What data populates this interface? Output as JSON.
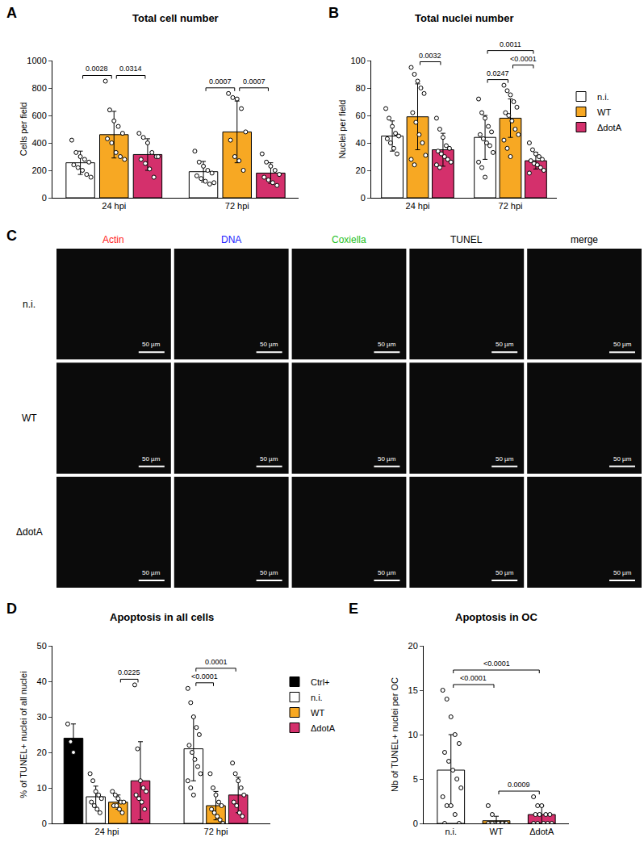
{
  "chart_data": [
    {
      "panel": "A",
      "type": "bar",
      "title": "Total cell number",
      "y_label": "Cells per field",
      "categories": [
        "24 hpi",
        "72 hpi"
      ],
      "series": [
        {
          "name": "n.i.",
          "color": "#ffffff",
          "values": [
            255,
            190
          ],
          "sd": [
            85,
            75
          ],
          "points": [
            [
              420,
              330,
              300,
              280,
              260,
              240,
              220,
              200,
              170,
              150
            ],
            [
              340,
              260,
              230,
              200,
              180,
              160,
              140,
              120,
              100,
              110
            ]
          ]
        },
        {
          "name": "WT",
          "color": "#f7a823",
          "values": [
            460,
            480
          ],
          "sd": [
            170,
            225
          ],
          "points": [
            [
              850,
              640,
              560,
              520,
              470,
              430,
              400,
              330,
              300,
              280
            ],
            [
              760,
              730,
              720,
              650,
              480,
              420,
              300,
              270,
              200
            ]
          ]
        },
        {
          "name": "ΔdotA",
          "color": "#d4306c",
          "values": [
            315,
            180
          ],
          "sd": [
            115,
            75
          ],
          "points": [
            [
              470,
              440,
              400,
              330,
              300,
              280,
              250,
              210,
              150,
              300
            ],
            [
              320,
              260,
              230,
              200,
              170,
              150,
              130,
              110,
              90
            ]
          ]
        }
      ],
      "ylim": [
        0,
        1000
      ],
      "yticks": [
        0,
        200,
        400,
        600,
        800,
        1000
      ],
      "comparisons": [
        {
          "category": "24 hpi",
          "a": "n.i.",
          "b": "WT",
          "p": "0.0028"
        },
        {
          "category": "24 hpi",
          "a": "WT",
          "b": "ΔdotA",
          "p": "0.0314"
        },
        {
          "category": "72 hpi",
          "a": "n.i.",
          "b": "WT",
          "p": "0.0007"
        },
        {
          "category": "72 hpi",
          "a": "WT",
          "b": "ΔdotA",
          "p": "0.0007"
        }
      ]
    },
    {
      "panel": "B",
      "type": "bar",
      "title": "Total nuclei number",
      "y_label": "Nuclei per field",
      "categories": [
        "24 hpi",
        "72 hpi"
      ],
      "series": [
        {
          "name": "n.i.",
          "color": "#ffffff",
          "values": [
            45,
            44
          ],
          "sd": [
            11,
            16
          ],
          "points": [
            [
              65,
              58,
              52,
              47,
              45,
              43,
              40,
              36,
              32
            ],
            [
              72,
              62,
              58,
              52,
              48,
              46,
              43,
              40,
              38,
              33,
              26,
              22,
              15
            ]
          ]
        },
        {
          "name": "WT",
          "color": "#f7a823",
          "values": [
            59,
            58
          ],
          "sd": [
            24,
            14
          ],
          "points": [
            [
              95,
              90,
              85,
              80,
              76,
              62,
              55,
              46,
              40,
              31,
              28,
              24
            ],
            [
              82,
              78,
              75,
              70,
              66,
              62,
              60,
              56,
              50,
              46,
              42,
              36,
              30
            ]
          ]
        },
        {
          "name": "ΔdotA",
          "color": "#d4306c",
          "values": [
            35,
            27
          ],
          "sd": [
            12,
            6
          ],
          "points": [
            [
              58,
              50,
              44,
              38,
              36,
              34,
              32,
              30,
              28,
              26,
              24,
              22
            ],
            [
              40,
              35,
              32,
              30,
              28,
              27,
              25,
              24,
              22,
              20,
              18
            ]
          ]
        }
      ],
      "ylim": [
        0,
        100
      ],
      "yticks": [
        0,
        20,
        40,
        60,
        80,
        100
      ],
      "legend": "right",
      "comparisons": [
        {
          "category": "24 hpi",
          "a": "WT",
          "b": "ΔdotA",
          "p": "0.0032"
        },
        {
          "category": "72 hpi",
          "a": "n.i.",
          "b": "ΔdotA",
          "p": "0.0011"
        },
        {
          "category": "72 hpi",
          "a": "n.i.",
          "b": "WT",
          "p": "0.0247"
        },
        {
          "category": "72 hpi",
          "a": "WT",
          "b": "ΔdotA",
          "p": "<0.0001"
        }
      ]
    },
    {
      "panel": "D",
      "type": "bar",
      "title": "Apoptosis in all cells",
      "y_label": "% of TUNEL+ nuclei of all nuclei",
      "categories": [
        "24 hpi",
        "72 hpi"
      ],
      "series": [
        {
          "name": "Ctrl+",
          "color": "#000000",
          "values": [
            24,
            null
          ],
          "sd": [
            4,
            null
          ],
          "points": [
            [
              28,
              23,
              20
            ],
            []
          ]
        },
        {
          "name": "n.i.",
          "color": "#ffffff",
          "values": [
            7.5,
            21
          ],
          "sd": [
            3,
            9
          ],
          "points": [
            [
              14,
              12,
              9,
              8,
              7,
              6,
              5,
              4,
              3
            ],
            [
              38,
              34,
              30,
              27,
              25,
              22,
              20,
              18,
              16,
              14,
              12,
              10,
              8
            ]
          ]
        },
        {
          "name": "WT",
          "color": "#f7a823",
          "values": [
            6,
            5
          ],
          "sd": [
            2,
            4
          ],
          "points": [
            [
              9,
              8,
              7,
              6,
              6,
              5,
              5,
              4,
              3
            ],
            [
              14,
              10,
              8,
              6,
              5,
              4,
              3,
              2,
              1,
              0
            ]
          ]
        },
        {
          "name": "ΔdotA",
          "color": "#d4306c",
          "values": [
            12,
            8
          ],
          "sd": [
            11,
            5
          ],
          "points": [
            [
              39,
              21,
              12,
              10,
              9,
              8,
              7,
              6,
              4
            ],
            [
              17,
              14,
              12,
              10,
              8,
              6,
              5,
              3,
              2
            ]
          ]
        }
      ],
      "ylim": [
        0,
        50
      ],
      "yticks": [
        0,
        10,
        20,
        30,
        40,
        50
      ],
      "legend": "right",
      "comparisons": [
        {
          "category": "24 hpi",
          "a": "WT",
          "b": "ΔdotA",
          "p": "0.0225"
        },
        {
          "category": "72 hpi",
          "a": "n.i.",
          "b": "ΔdotA",
          "p": "0.0001"
        },
        {
          "category": "72 hpi",
          "a": "n.i.",
          "b": "WT",
          "p": "<0.0001"
        }
      ]
    },
    {
      "panel": "E",
      "type": "bar",
      "title": "Apoptosis in OC",
      "y_label": "Nb of TUNEL+ nuclei per OC",
      "categories": [
        "n.i.",
        "WT",
        "ΔdotA"
      ],
      "values": [
        6,
        0.3,
        1
      ],
      "sd": [
        4,
        0.5,
        1
      ],
      "colors": [
        "#ffffff",
        "#f7a823",
        "#d4306c"
      ],
      "points": [
        [
          15,
          14,
          12,
          10,
          9,
          8,
          7,
          6,
          5,
          4,
          3,
          2,
          2,
          1,
          0,
          0
        ],
        [
          2,
          1,
          0,
          0,
          0,
          0,
          0,
          0,
          0,
          0,
          0,
          0
        ],
        [
          3,
          2,
          2,
          1,
          1,
          1,
          1,
          0,
          0,
          0,
          0,
          0
        ]
      ],
      "ylim": [
        0,
        20
      ],
      "yticks": [
        0,
        5,
        10,
        15,
        20
      ],
      "comparisons": [
        {
          "a": "n.i.",
          "b": "ΔdotA",
          "p": "<0.0001"
        },
        {
          "a": "n.i.",
          "b": "WT",
          "p": "<0.0001"
        },
        {
          "a": "WT",
          "b": "ΔdotA",
          "p": "0.0009"
        }
      ]
    }
  ],
  "panel_c": {
    "panel": "C",
    "columns": [
      {
        "label": "Actin",
        "color": "#ff1a1a"
      },
      {
        "label": "DNA",
        "color": "#2020ff"
      },
      {
        "label": "Coxiella",
        "color": "#1fbf1f"
      },
      {
        "label": "TUNEL",
        "color": "#000000"
      },
      {
        "label": "merge",
        "color": "#000000"
      }
    ],
    "rows": [
      "n.i.",
      "WT",
      "ΔdotA"
    ],
    "scale_bar": "50 µm"
  }
}
